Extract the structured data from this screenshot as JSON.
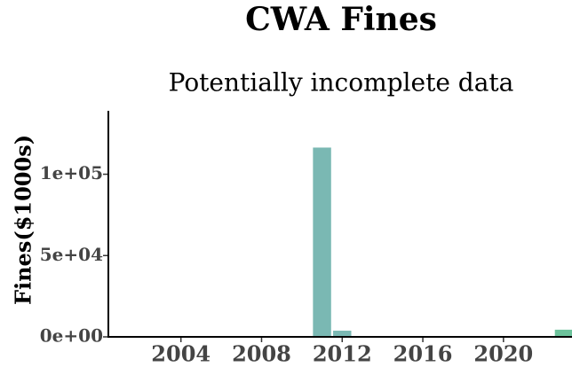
{
  "chart_data": {
    "type": "bar",
    "title": "CWA Fines",
    "subtitle": "Potentially incomplete data",
    "y_label": "Fines($1000s)",
    "x": [
      2011,
      2012,
      2023
    ],
    "values": [
      116400,
      3800,
      4400
    ],
    "colors": [
      "#7ab8b3",
      "#7ab8b3",
      "#6cc29b"
    ],
    "xlim": [
      2000.4,
      2023.4
    ],
    "xticks": [
      2004,
      2008,
      2012,
      2016,
      2020
    ],
    "ylim": [
      0,
      139000
    ],
    "yticks": [
      {
        "value": 0,
        "label": "0e+00"
      },
      {
        "value": 50000,
        "label": "5e+04"
      },
      {
        "value": 100000,
        "label": "1e+05"
      }
    ]
  }
}
